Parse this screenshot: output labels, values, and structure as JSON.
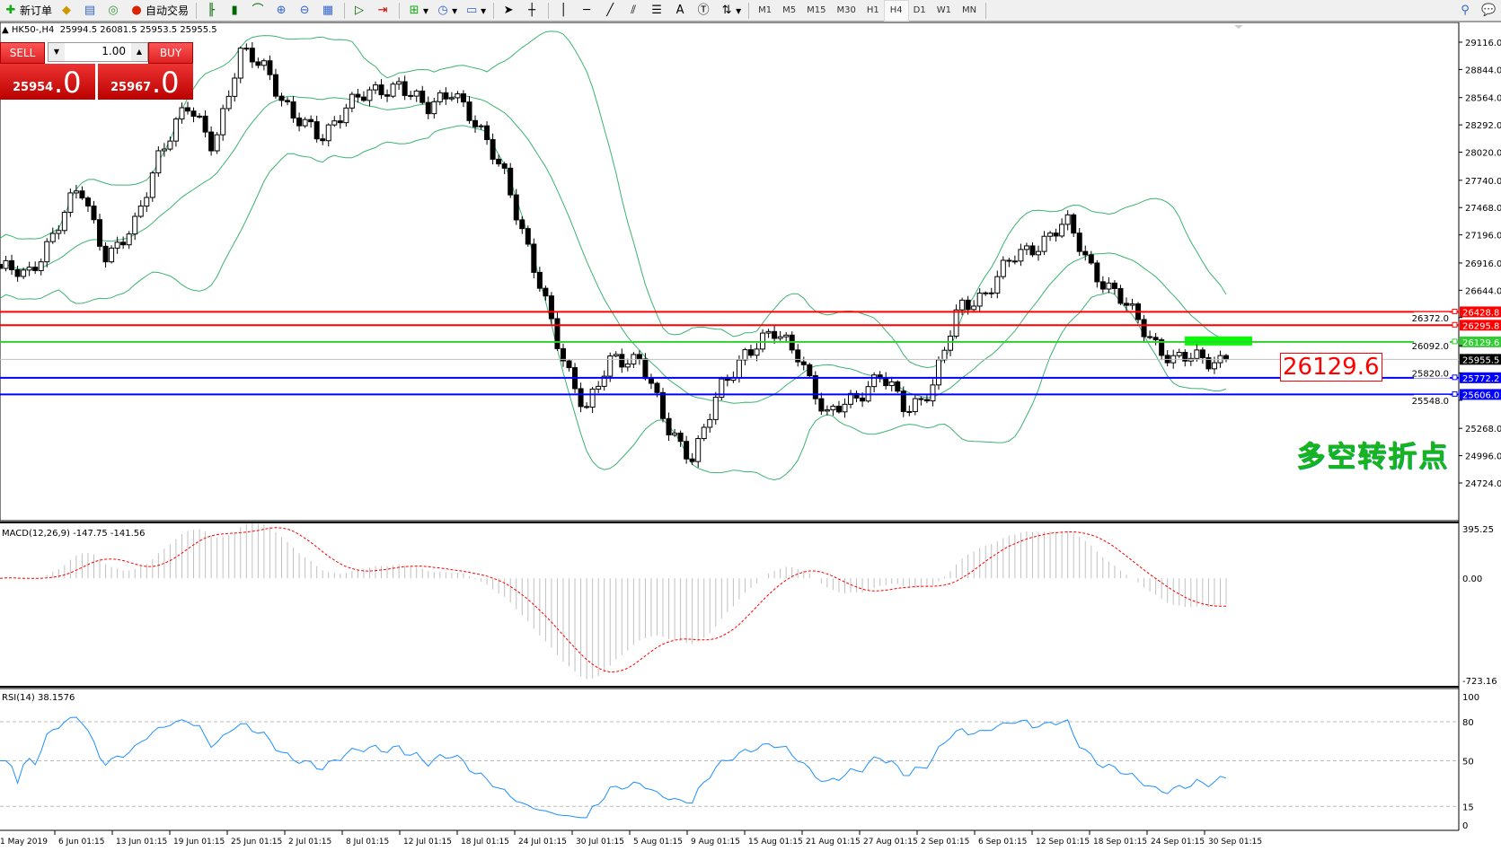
{
  "toolbar": {
    "new_order": "新订单",
    "auto_trading": "自动交易",
    "icons": [
      "new-order-icon",
      "market-watch-icon",
      "navigator-icon",
      "signals-icon",
      "auto-trading-icon",
      "bar-chart-icon",
      "candlestick-icon",
      "line-chart-icon",
      "zoom-in-icon",
      "zoom-out-icon",
      "tile-windows-icon",
      "autoscroll-icon",
      "chart-shift-icon",
      "indicators-icon",
      "periods-icon",
      "templates-icon",
      "cursor-icon",
      "crosshair-icon",
      "vertical-line-icon",
      "horizontal-line-icon",
      "trendline-icon",
      "equidistant-channel-icon",
      "fibonacci-icon",
      "text-icon",
      "text-label-icon",
      "arrows-icon",
      "search-icon",
      "chat-icon"
    ],
    "timeframes": [
      "M1",
      "M5",
      "M15",
      "M30",
      "H1",
      "H4",
      "D1",
      "W1",
      "MN"
    ],
    "active_timeframe": "H4"
  },
  "chart": {
    "symbol": "HK50-,H4",
    "ohlc": "25994.5 26081.5 25953.5 25955.5",
    "price_ticks": [
      "29116.0",
      "28844.0",
      "28564.0",
      "28292.0",
      "28020.0",
      "27740.0",
      "27468.0",
      "27196.0",
      "26916.0",
      "26644.0",
      "26372.0",
      "26092.0",
      "25820.0",
      "25548.0",
      "25268.0",
      "24996.0",
      "24724.0"
    ],
    "price_ticks_values": [
      29116,
      28844,
      28564,
      28292,
      28020,
      27740,
      27468,
      27196,
      26916,
      26644,
      26372,
      26092,
      25820,
      25548,
      25268,
      24996,
      24724
    ],
    "levels": [
      {
        "value": 26428.8,
        "label": "26428.8",
        "color": "#ff0000"
      },
      {
        "value": 26295.8,
        "label": "26295.8",
        "color": "#ff0000"
      },
      {
        "value": 26129.6,
        "label": "26129.6",
        "color": "#32cd32"
      },
      {
        "value": 25955.5,
        "label": "25955.5",
        "color": "#000000",
        "bid": true
      },
      {
        "value": 25772.2,
        "label": "25772.2",
        "color": "#0000ff"
      },
      {
        "value": 25606.0,
        "label": "25606.0",
        "color": "#0000ff"
      }
    ],
    "annotation_price": "26129.6",
    "annotation_text": "多空转折点",
    "bollinger_color": "#3cb371",
    "close_path": [
      26862,
      26774,
      27217,
      27660,
      26995,
      27217,
      28060,
      28460,
      28105,
      28992,
      28859,
      28370,
      28149,
      28504,
      28592,
      28726,
      28415,
      28681,
      28193,
      27794,
      26862,
      26064,
      25443,
      25975,
      25975,
      25266,
      25000,
      25621,
      26064,
      26197,
      26020,
      25354,
      25576,
      25798,
      25443,
      25709,
      26463,
      26640,
      26950,
      27128,
      27306,
      26862,
      26552,
      26241,
      25931,
      25975,
      25955.5
    ],
    "time_labels": [
      "1 May 2019",
      "6 Jun 01:15",
      "13 Jun 01:15",
      "19 Jun 01:15",
      "25 Jun 01:15",
      "2 Jul 01:15",
      "8 Jul 01:15",
      "12 Jul 01:15",
      "18 Jul 01:15",
      "24 Jul 01:15",
      "30 Jul 01:15",
      "5 Aug 01:15",
      "9 Aug 01:15",
      "15 Aug 01:15",
      "21 Aug 01:15",
      "27 Aug 01:15",
      "2 Sep 01:15",
      "6 Sep 01:15",
      "12 Sep 01:15",
      "18 Sep 01:15",
      "24 Sep 01:15",
      "30 Sep 01:15"
    ]
  },
  "trade_panel": {
    "sell_label": "SELL",
    "buy_label": "BUY",
    "lots": "1.00",
    "sell_price": "25954",
    "sell_frac": ".0",
    "buy_price": "25967",
    "buy_frac": ".0"
  },
  "macd": {
    "label": "MACD(12,26,9) -147.75 -141.56",
    "ticks": [
      "395.25",
      "0.00",
      "-723.16"
    ],
    "ticks_values": [
      395.25,
      0,
      -723.16
    ],
    "signal_color": "#ff0000",
    "histogram_color": "#c0c0c0"
  },
  "rsi": {
    "label": "RSI(14) 38.1576",
    "ticks": [
      "100",
      "80",
      "50",
      "15",
      "0"
    ],
    "ticks_values": [
      100,
      80,
      50,
      15,
      0
    ],
    "levels": [
      80,
      50,
      15
    ],
    "line_color": "#1e90ff"
  }
}
